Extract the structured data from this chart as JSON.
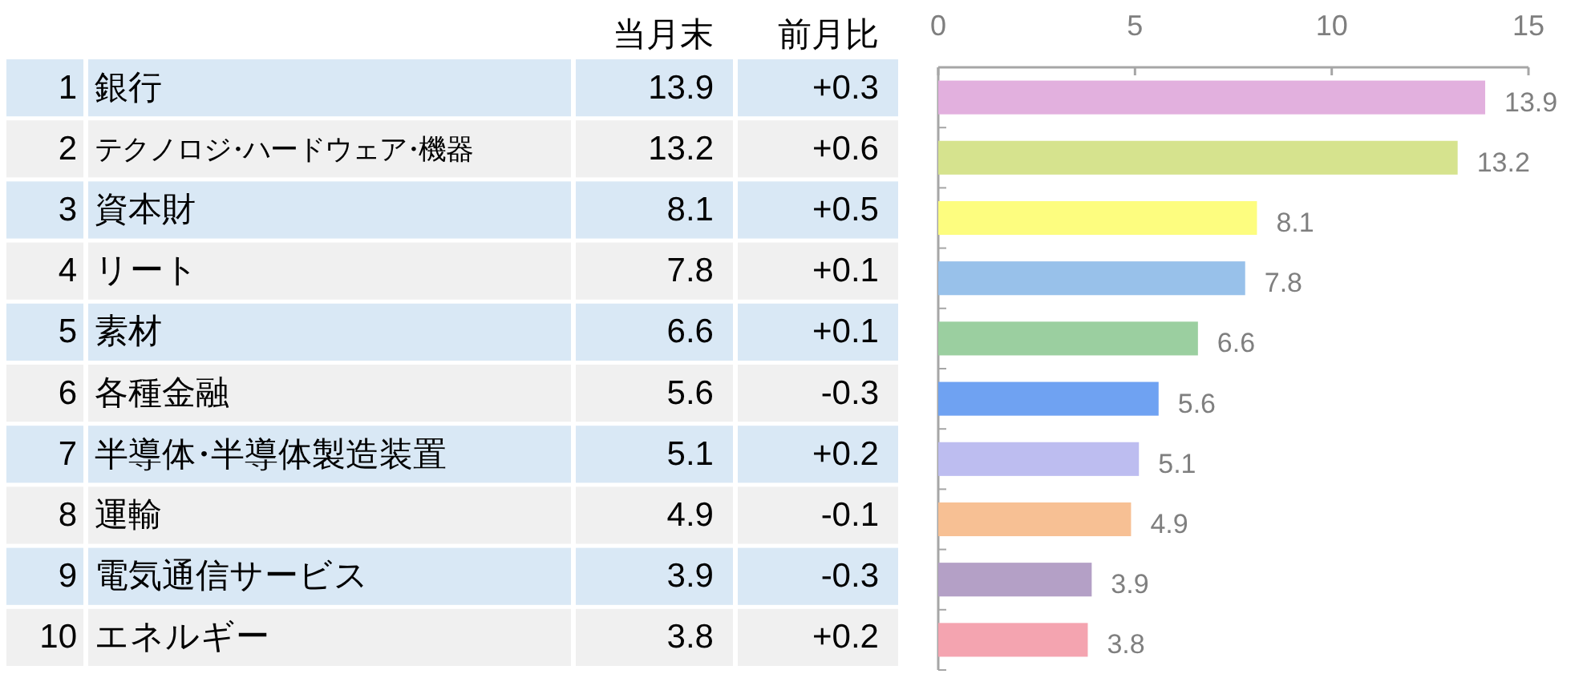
{
  "chart_data": [
    {
      "type": "other",
      "categories": [
        "銀行",
        "テクノロジ・ハードウェア・機器",
        "資本財",
        "リート",
        "素材",
        "各種金融",
        "半導体・半導体製造装置",
        "運輸",
        "電気通信サービス",
        "エネルギー"
      ],
      "series": [
        {
          "colors": [
            "#d9e8f5",
            "#f0f0f0",
            "#d9e8f5",
            "#f0f0f0",
            "#d9e8f5",
            "#f0f0f0",
            "#d9e8f5",
            "#f0f0f0",
            "#d9e8f5",
            "#f0f0f0"
          ],
          "values": [
            1,
            2,
            3,
            4,
            5,
            6,
            7,
            8,
            9,
            10
          ]
        },
        {
          "name": "当月末",
          "colors": [
            "#d9e8f5",
            "#f0f0f0",
            "#d9e8f5",
            "#f0f0f0",
            "#d9e8f5",
            "#f0f0f0",
            "#d9e8f5",
            "#f0f0f0",
            "#d9e8f5",
            "#f0f0f0"
          ],
          "values": [
            13.9,
            13.2,
            8.1,
            7.8,
            6.6,
            5.6,
            5.1,
            4.9,
            3.9,
            3.8
          ]
        },
        {
          "name": "前月比",
          "colors": [
            "#d9e8f5",
            "#f0f0f0",
            "#d9e8f5",
            "#f0f0f0",
            "#d9e8f5",
            "#f0f0f0",
            "#d9e8f5",
            "#f0f0f0",
            "#d9e8f5",
            "#f0f0f0"
          ],
          "values": [
            0.3,
            0.6,
            0.5,
            0.1,
            0.1,
            -0.3,
            0.2,
            -0.1,
            -0.3,
            0.2
          ],
          "value_labels": [
            "+0.3",
            "+0.6",
            "+0.5",
            "+0.1",
            "+0.1",
            "-0.3",
            "+0.2",
            "-0.1",
            "-0.3",
            "+0.2"
          ]
        }
      ],
      "data_labels": true
    },
    {
      "type": "bar",
      "orientation": "horizontal",
      "categories": [
        null,
        null,
        null,
        null,
        null,
        null,
        null,
        null,
        null,
        null
      ],
      "values": [
        13.9,
        13.2,
        8.1,
        7.8,
        6.6,
        5.6,
        5.1,
        4.9,
        3.9,
        3.8
      ],
      "value_labels": [
        "13.9",
        "13.2",
        "8.1",
        "7.8",
        "6.6",
        "5.6",
        "5.1",
        "4.9",
        "3.9",
        "3.8"
      ],
      "colors": [
        "#e2b0de",
        "#d6e38e",
        "#fdfd7f",
        "#98c1ea",
        "#9bcfa0",
        "#6fa2f2",
        "#bdbdf0",
        "#f7c094",
        "#b4a0c6",
        "#f4a4b0"
      ],
      "xlim": [
        0,
        15
      ],
      "xticks": [
        0,
        5,
        10,
        15
      ]
    }
  ]
}
